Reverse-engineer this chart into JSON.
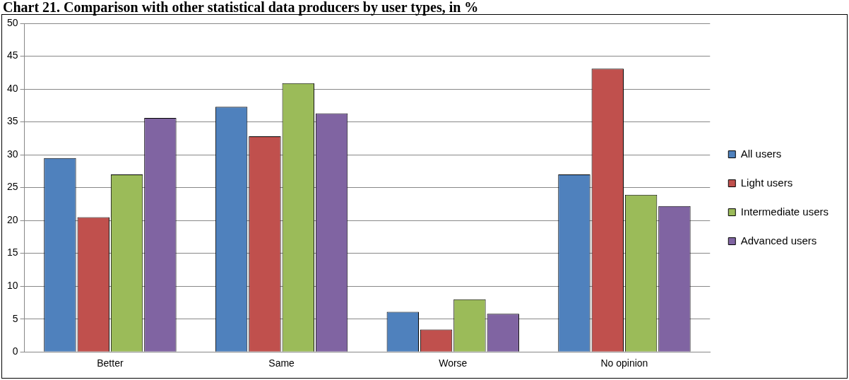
{
  "chart_data": {
    "type": "bar",
    "title": "Chart 21. Comparison with other statistical data producers by user types, in %",
    "categories": [
      "Better",
      "Same",
      "Worse",
      "No opinion"
    ],
    "series": [
      {
        "name": "All users",
        "color": "#4f81bd",
        "values": [
          29.5,
          37.3,
          6.1,
          27.0
        ]
      },
      {
        "name": "Light users",
        "color": "#c0504d",
        "values": [
          20.5,
          32.8,
          3.4,
          43.1
        ]
      },
      {
        "name": "Intermediate users",
        "color": "#9bbb59",
        "values": [
          27.0,
          40.9,
          8.0,
          23.9
        ]
      },
      {
        "name": "Advanced users",
        "color": "#8064a2",
        "values": [
          35.6,
          36.3,
          5.8,
          22.2
        ]
      }
    ],
    "ylim": [
      0,
      50
    ],
    "yticks": [
      0,
      5,
      10,
      15,
      20,
      25,
      30,
      35,
      40,
      45,
      50
    ],
    "grid": "y",
    "legend": "right"
  }
}
